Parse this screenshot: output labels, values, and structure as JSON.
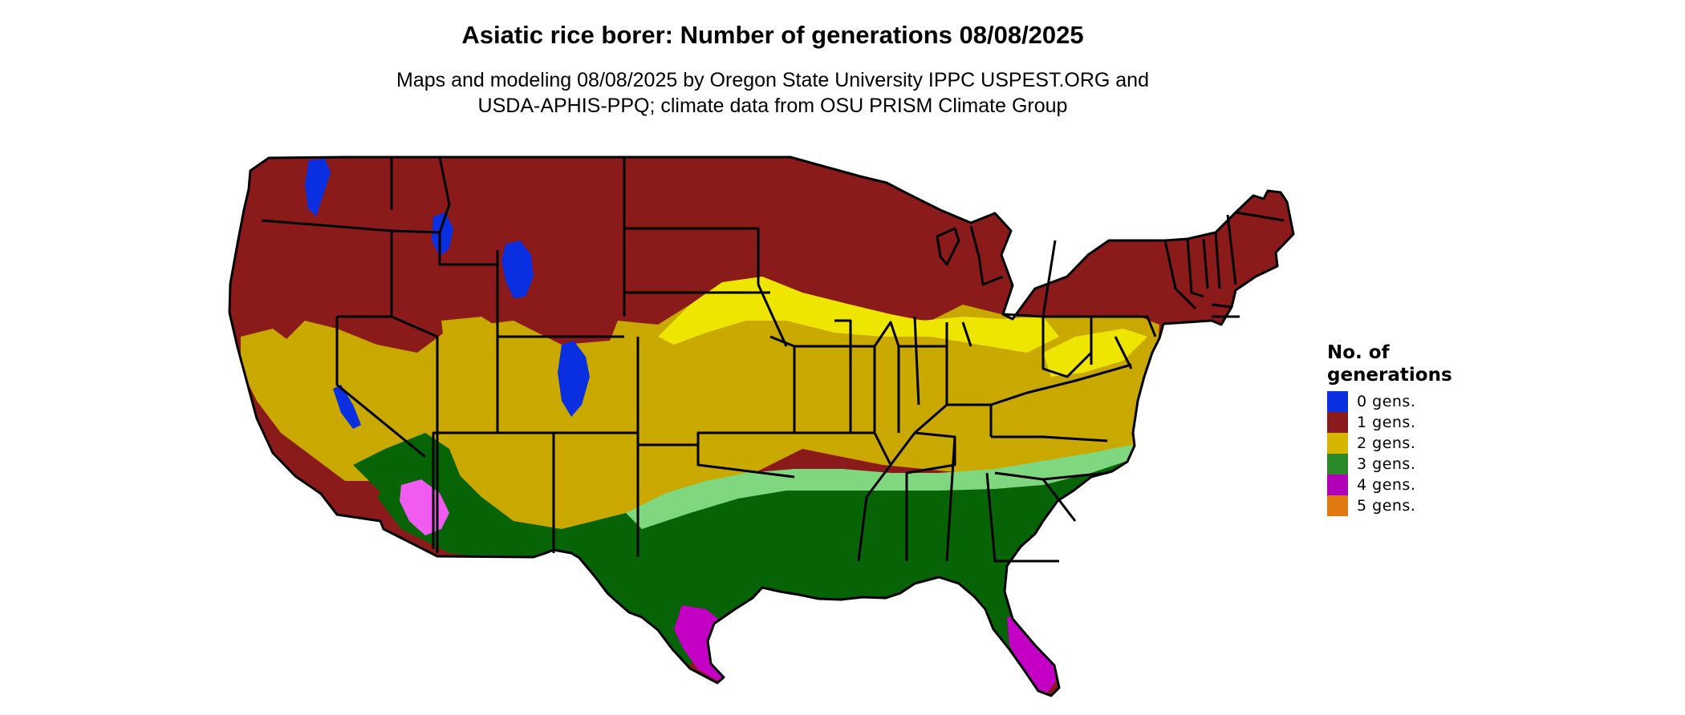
{
  "title": "Asiatic rice borer: Number of generations 08/08/2025",
  "subtitle_lines": [
    "Maps and modeling 08/08/2025 by Oregon State University IPPC USPEST.ORG and",
    "USDA-APHIS-PPQ; climate data from OSU PRISM Climate Group"
  ],
  "legend": {
    "title_lines": [
      "No. of",
      "generations"
    ],
    "items": [
      {
        "label": "0 gens.",
        "color": "#0a2fe0"
      },
      {
        "label": "1 gens.",
        "color": "#8b1a1a"
      },
      {
        "label": "2 gens.",
        "color": "#d6b500"
      },
      {
        "label": "3 gens.",
        "color": "#2a8a2a"
      },
      {
        "label": "4 gens.",
        "color": "#b000b8"
      },
      {
        "label": "5 gens.",
        "color": "#e07a10"
      }
    ]
  },
  "map_colors": {
    "one_gen": "#8b1a1a",
    "two_gen_dark": "#c9a800",
    "two_gen_light": "#eee600",
    "three_gen_dark": "#066306",
    "three_gen_light": "#7fd87f",
    "four_gen": "#c400c4",
    "four_gen_light": "#f05cf0",
    "zero_gen": "#0a2fe0",
    "borders": "#000000"
  }
}
